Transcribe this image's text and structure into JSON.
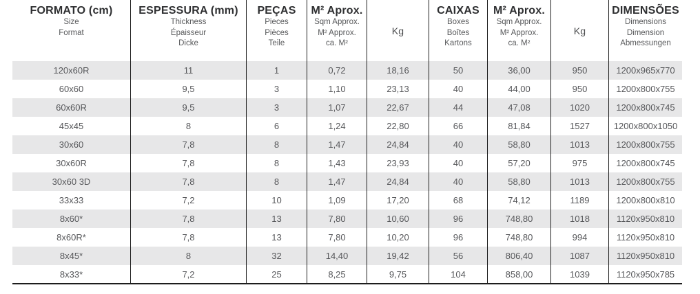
{
  "table": {
    "columns": [
      {
        "id": "formato",
        "title": "FORMATO (cm)",
        "subtitles": [
          "Size",
          "Format"
        ]
      },
      {
        "id": "espessura",
        "title": "ESPESSURA (mm)",
        "subtitles": [
          "Thickness",
          "Épaisseur",
          "Dicke"
        ]
      },
      {
        "id": "pecas",
        "title": "PEÇAS",
        "subtitles": [
          "Pieces",
          "Pièces",
          "Teile"
        ]
      },
      {
        "id": "m2-aprox-unit",
        "title": "M² Aprox.",
        "subtitles": [
          "Sqm Approx.",
          "M² Approx.",
          "ca. M²"
        ]
      },
      {
        "id": "kg-unit",
        "title": "Kg",
        "subtitles": []
      },
      {
        "id": "caixas",
        "title": "CAIXAS",
        "subtitles": [
          "Boxes",
          "Boîtes",
          "Kartons"
        ]
      },
      {
        "id": "m2-aprox-box",
        "title": "M² Aprox.",
        "subtitles": [
          "Sqm Approx.",
          "M² Approx.",
          "ca. M²"
        ]
      },
      {
        "id": "kg-box",
        "title": "Kg",
        "subtitles": []
      },
      {
        "id": "dimensoes",
        "title": "DIMENSÕES",
        "subtitles": [
          "Dimensions",
          "Dimension",
          "Abmessungen"
        ]
      }
    ],
    "rows": [
      [
        "120x60R",
        "11",
        "1",
        "0,72",
        "18,16",
        "50",
        "36,00",
        "950",
        "1200x965x770"
      ],
      [
        "60x60",
        "9,5",
        "3",
        "1,10",
        "23,13",
        "40",
        "44,00",
        "950",
        "1200x800x755"
      ],
      [
        "60x60R",
        "9,5",
        "3",
        "1,07",
        "22,67",
        "44",
        "47,08",
        "1020",
        "1200x800x745"
      ],
      [
        "45x45",
        "8",
        "6",
        "1,24",
        "22,80",
        "66",
        "81,84",
        "1527",
        "1200x800x1050"
      ],
      [
        "30x60",
        "7,8",
        "8",
        "1,47",
        "24,84",
        "40",
        "58,80",
        "1013",
        "1200x800x755"
      ],
      [
        "30x60R",
        "7,8",
        "8",
        "1,43",
        "23,93",
        "40",
        "57,20",
        "975",
        "1200x800x745"
      ],
      [
        "30x60 3D",
        "7,8",
        "8",
        "1,47",
        "24,84",
        "40",
        "58,80",
        "1013",
        "1200x800x755"
      ],
      [
        "33x33",
        "7,2",
        "10",
        "1,09",
        "17,20",
        "68",
        "74,12",
        "1189",
        "1200x800x810"
      ],
      [
        "8x60*",
        "7,8",
        "13",
        "7,80",
        "10,60",
        "96",
        "748,80",
        "1018",
        "1120x950x810"
      ],
      [
        "8x60R*",
        "7,8",
        "13",
        "7,80",
        "10,20",
        "96",
        "748,80",
        "994",
        "1120x950x810"
      ],
      [
        "8x45*",
        "8",
        "32",
        "14,40",
        "19,42",
        "56",
        "806,40",
        "1087",
        "1120x950x810"
      ],
      [
        "8x33*",
        "7,2",
        "25",
        "8,25",
        "9,75",
        "104",
        "858,00",
        "1039",
        "1120x950x785"
      ]
    ]
  },
  "colors": {
    "stripe": "#e7e7e8",
    "grid_line": "#1d1d1d",
    "body_text": "#56575a",
    "header_text": "#2e2f31"
  }
}
